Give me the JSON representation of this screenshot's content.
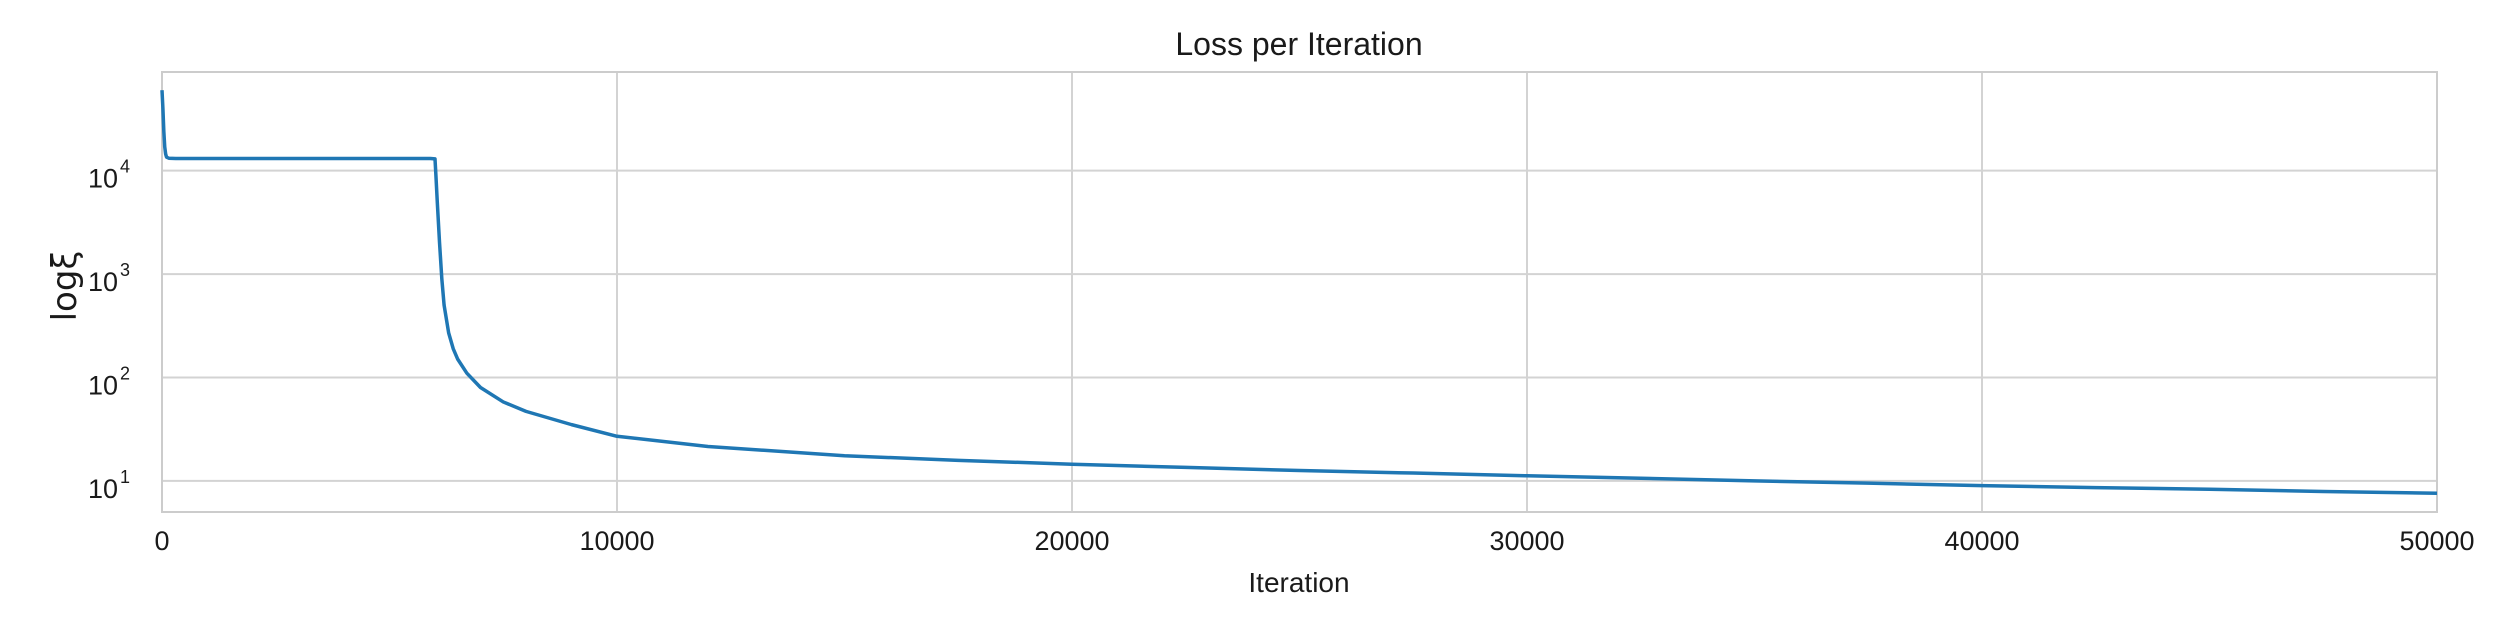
{
  "chart_data": {
    "type": "line",
    "title": "Loss per Iteration",
    "xlabel": "Iteration",
    "ylabel": "logξ",
    "xlim": [
      0,
      50000
    ],
    "ylim": [
      5,
      90000
    ],
    "yscale": "log",
    "grid": true,
    "x_ticks": [
      0,
      10000,
      20000,
      30000,
      40000,
      50000
    ],
    "x_tick_labels": [
      "0",
      "10000",
      "20000",
      "30000",
      "40000",
      "50000"
    ],
    "y_ticks": [
      10,
      100,
      1000,
      10000
    ],
    "y_tick_bases": [
      "10",
      "10",
      "10",
      "10"
    ],
    "y_tick_exponents": [
      "1",
      "2",
      "3",
      "4"
    ],
    "series": [
      {
        "color": "#1f77b4",
        "x": [
          0,
          20,
          40,
          60,
          80,
          100,
          150,
          300,
          1000,
          3000,
          5000,
          5900,
          6000,
          6020,
          6050,
          6100,
          6150,
          6200,
          6300,
          6400,
          6500,
          6700,
          7000,
          7500,
          8000,
          9000,
          10000,
          12000,
          15000,
          17500,
          20000,
          22500,
          25000,
          27500,
          30000,
          32500,
          35000,
          37500,
          40000,
          42500,
          45000,
          47500,
          50000
        ],
        "y": [
          60000,
          40000,
          24000,
          17000,
          14500,
          13500,
          13200,
          13100,
          13100,
          13100,
          13100,
          13100,
          13000,
          9000,
          5000,
          2000,
          900,
          500,
          270,
          190,
          150,
          110,
          80,
          58,
          47,
          35,
          27,
          21.5,
          17.5,
          15.8,
          14.5,
          13.5,
          12.6,
          11.9,
          11.2,
          10.6,
          10.0,
          9.5,
          9.0,
          8.6,
          8.3,
          7.9,
          7.6
        ]
      }
    ]
  }
}
